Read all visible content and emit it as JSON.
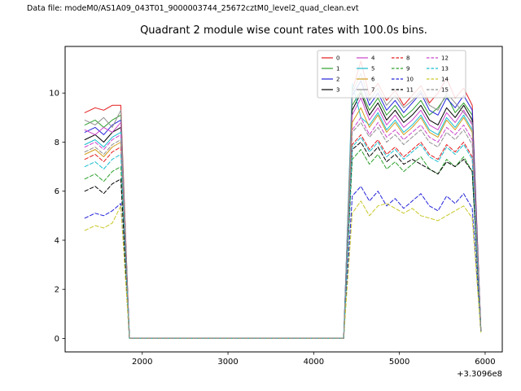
{
  "header": {
    "data_file_text": "Data file: modeM0/AS1A09_043T01_9000003744_25672cztM0_level2_quad_clean.evt"
  },
  "chart_data": {
    "type": "line",
    "title": "Quadrant 2 module wise count rates with 100.0s bins.",
    "xlabel": "",
    "ylabel": "",
    "x_offset_text": "+3.3096e8",
    "xlim": [
      1100,
      6200
    ],
    "ylim": [
      -0.55,
      11.9
    ],
    "xticks": [
      2000,
      3000,
      4000,
      5000,
      6000
    ],
    "yticks": [
      0,
      2,
      4,
      6,
      8,
      10
    ],
    "grid": false,
    "legend": {
      "position": "upper right",
      "columns": 4,
      "labels": [
        "0",
        "1",
        "2",
        "3",
        "4",
        "5",
        "6",
        "7",
        "8",
        "9",
        "10",
        "11",
        "12",
        "13",
        "14",
        "15"
      ]
    },
    "x": [
      1330,
      1450,
      1550,
      1650,
      1750,
      1850,
      4350,
      4450,
      4550,
      4650,
      4750,
      4850,
      4950,
      5050,
      5150,
      5250,
      5350,
      5450,
      5550,
      5650,
      5750,
      5850,
      5950
    ],
    "series": [
      {
        "name": "0",
        "color": "#e41a1c",
        "dash": "solid",
        "values": [
          9.2,
          9.4,
          9.3,
          9.5,
          9.5,
          0,
          0,
          10.1,
          11.3,
          9.9,
          10.4,
          9.7,
          10.1,
          9.5,
          9.9,
          10.3,
          9.6,
          10.0,
          10.6,
          9.8,
          10.2,
          9.5,
          0.4
        ]
      },
      {
        "name": "1",
        "color": "#2ca02c",
        "dash": "solid",
        "values": [
          8.7,
          8.9,
          8.6,
          8.9,
          9.1,
          0,
          0,
          9.5,
          10.1,
          9.3,
          9.8,
          9.1,
          9.5,
          9.0,
          9.3,
          9.7,
          9.1,
          9.4,
          9.9,
          9.2,
          9.6,
          9.1,
          0.35
        ]
      },
      {
        "name": "2",
        "color": "#2323d9",
        "dash": "solid",
        "values": [
          8.4,
          8.6,
          8.3,
          8.7,
          8.9,
          0,
          0,
          9.9,
          10.5,
          9.5,
          10.0,
          9.3,
          9.7,
          9.2,
          9.6,
          10.0,
          9.3,
          9.1,
          9.8,
          9.4,
          9.9,
          9.3,
          0.35
        ]
      },
      {
        "name": "3",
        "color": "#000000",
        "dash": "solid",
        "values": [
          8.1,
          8.3,
          8.0,
          8.4,
          8.6,
          0,
          0,
          9.3,
          10.0,
          9.1,
          9.6,
          8.9,
          9.3,
          8.8,
          9.1,
          9.5,
          8.9,
          8.7,
          9.4,
          9.0,
          9.5,
          8.9,
          0.3
        ]
      },
      {
        "name": "4",
        "color": "#cc44cc",
        "dash": "solid",
        "values": [
          8.5,
          8.3,
          8.6,
          8.4,
          8.8,
          0,
          0,
          9.1,
          9.8,
          8.9,
          9.4,
          8.7,
          9.1,
          8.6,
          8.9,
          9.3,
          8.7,
          8.5,
          9.2,
          8.8,
          9.3,
          8.7,
          0.3
        ]
      },
      {
        "name": "5",
        "color": "#17becf",
        "dash": "solid",
        "values": [
          7.9,
          8.1,
          7.8,
          8.2,
          8.4,
          0,
          0,
          10.4,
          9.0,
          8.7,
          9.2,
          8.5,
          8.9,
          8.4,
          8.7,
          9.1,
          8.5,
          8.3,
          9.0,
          8.6,
          9.1,
          8.5,
          0.3
        ]
      },
      {
        "name": "6",
        "color": "#d19c1d",
        "dash": "solid",
        "values": [
          7.5,
          7.7,
          7.4,
          7.8,
          8.0,
          0,
          0,
          8.8,
          9.4,
          8.6,
          9.1,
          8.4,
          8.8,
          8.3,
          8.6,
          9.0,
          8.4,
          8.2,
          8.9,
          8.5,
          9.0,
          8.4,
          0.3
        ]
      },
      {
        "name": "7",
        "color": "#8f8f8f",
        "dash": "solid",
        "values": [
          8.9,
          8.7,
          9.0,
          8.6,
          9.3,
          0,
          0,
          10.0,
          10.8,
          9.7,
          10.2,
          9.5,
          9.9,
          9.4,
          9.7,
          10.1,
          9.5,
          9.3,
          10.0,
          9.6,
          9.2,
          8.8,
          0.35
        ]
      },
      {
        "name": "8",
        "color": "#e41a1c",
        "dash": "dashed",
        "values": [
          7.3,
          7.5,
          7.2,
          7.6,
          7.8,
          0,
          0,
          7.9,
          8.3,
          7.7,
          8.1,
          7.5,
          7.8,
          7.4,
          7.7,
          8.0,
          7.5,
          7.3,
          7.9,
          7.6,
          8.0,
          7.4,
          0.3
        ]
      },
      {
        "name": "9",
        "color": "#2ca02c",
        "dash": "dashed",
        "values": [
          6.5,
          6.7,
          6.4,
          6.8,
          7.0,
          0,
          0,
          7.3,
          7.7,
          7.1,
          7.5,
          6.9,
          7.2,
          6.8,
          7.1,
          7.4,
          6.9,
          6.7,
          7.3,
          7.0,
          7.4,
          6.8,
          0.3
        ]
      },
      {
        "name": "10",
        "color": "#2323d9",
        "dash": "dashed",
        "values": [
          4.9,
          5.1,
          5.0,
          5.2,
          5.5,
          0,
          0,
          5.8,
          6.2,
          5.6,
          6.0,
          5.4,
          5.7,
          5.3,
          5.6,
          5.9,
          5.4,
          5.2,
          5.8,
          5.5,
          5.9,
          5.3,
          0.3
        ]
      },
      {
        "name": "11",
        "color": "#000000",
        "dash": "dashed",
        "values": [
          6.0,
          6.2,
          5.9,
          6.3,
          6.5,
          0,
          0,
          7.7,
          8.0,
          7.4,
          7.8,
          7.2,
          7.5,
          7.1,
          7.3,
          7.1,
          6.9,
          6.7,
          7.2,
          7.0,
          7.3,
          6.8,
          0.3
        ]
      },
      {
        "name": "12",
        "color": "#cc44cc",
        "dash": "dashed",
        "values": [
          7.8,
          8.0,
          7.7,
          8.1,
          8.3,
          0,
          0,
          8.5,
          9.0,
          8.3,
          8.8,
          8.2,
          8.5,
          8.1,
          8.4,
          8.7,
          8.2,
          8.0,
          8.6,
          8.3,
          8.7,
          8.1,
          0.3
        ]
      },
      {
        "name": "13",
        "color": "#17becf",
        "dash": "dashed",
        "values": [
          7.0,
          7.2,
          6.9,
          7.3,
          7.5,
          0,
          0,
          7.8,
          8.2,
          7.6,
          8.0,
          7.4,
          7.7,
          7.3,
          7.6,
          7.9,
          7.4,
          7.2,
          7.8,
          7.5,
          7.9,
          7.3,
          0.3
        ]
      },
      {
        "name": "14",
        "color": "#c9c727",
        "dash": "dashed",
        "values": [
          4.4,
          4.6,
          4.5,
          4.7,
          5.4,
          0,
          0,
          5.1,
          5.6,
          5.0,
          5.4,
          5.5,
          5.3,
          5.1,
          5.3,
          5.0,
          4.9,
          4.8,
          5.0,
          5.2,
          5.4,
          4.9,
          0.25
        ]
      },
      {
        "name": "15",
        "color": "#8f8f8f",
        "dash": "dashed",
        "values": [
          7.6,
          7.8,
          7.5,
          7.9,
          8.1,
          0,
          0,
          8.4,
          8.8,
          8.2,
          8.6,
          8.0,
          8.3,
          7.9,
          8.2,
          8.5,
          8.0,
          7.8,
          8.4,
          8.1,
          8.5,
          7.9,
          0.3
        ]
      }
    ]
  }
}
